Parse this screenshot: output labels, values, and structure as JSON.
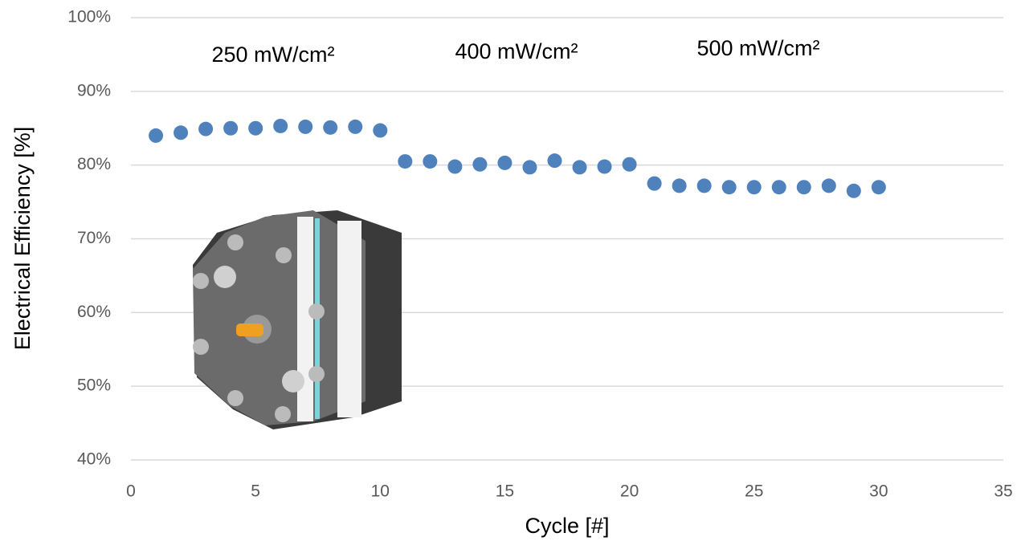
{
  "chart_data": {
    "type": "scatter",
    "x_label": "Cycle [#]",
    "y_label": "Electrical Efficiency [%]",
    "annotations": [
      "250 mW/cm²",
      "400 mW/cm²",
      "500 mW/cm²"
    ],
    "series": [
      {
        "color": "#4f81bd",
        "x": [
          1,
          2,
          3,
          4,
          5,
          6,
          7,
          8,
          9,
          10,
          11,
          12,
          13,
          14,
          15,
          16,
          17,
          18,
          19,
          20,
          21,
          22,
          23,
          24,
          25,
          26,
          27,
          28,
          29,
          30
        ],
        "values": [
          84,
          84.4,
          84.9,
          85,
          85,
          85.3,
          85.2,
          85.1,
          85.2,
          84.7,
          80.5,
          80.5,
          79.8,
          80.1,
          80.3,
          79.7,
          80.6,
          79.7,
          79.8,
          80.1,
          77.5,
          77.2,
          77.2,
          77,
          77,
          77,
          77,
          77.2,
          76.5,
          77
        ]
      }
    ],
    "xlim": [
      0,
      35
    ],
    "xticks": [
      0,
      5,
      10,
      15,
      20,
      25,
      30,
      35
    ],
    "ylim": [
      40,
      100
    ],
    "yticks": [
      {
        "value": 40,
        "label": "40%"
      },
      {
        "value": 50,
        "label": "50%"
      },
      {
        "value": 60,
        "label": "60%"
      },
      {
        "value": 70,
        "label": "70%"
      },
      {
        "value": 80,
        "label": "80%"
      },
      {
        "value": 90,
        "label": "90%"
      },
      {
        "value": 100,
        "label": "100%"
      }
    ],
    "grid": true
  }
}
